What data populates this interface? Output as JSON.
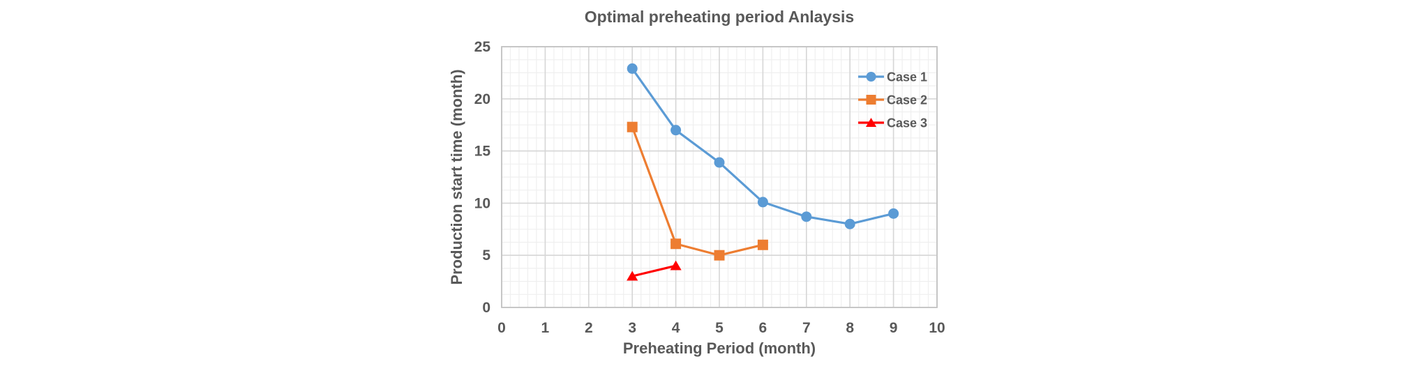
{
  "chart_data": {
    "type": "line",
    "title": "Optimal preheating period Anlaysis",
    "xlabel": "Preheating Period (month)",
    "ylabel": "Production start time (month)",
    "xlim": [
      0,
      10
    ],
    "ylim": [
      0,
      25
    ],
    "x_ticks": [
      0,
      1,
      2,
      3,
      4,
      5,
      6,
      7,
      8,
      9,
      10
    ],
    "y_ticks": [
      0,
      5,
      10,
      15,
      20,
      25
    ],
    "x_major_unit": 1,
    "x_minor_unit": 0.2,
    "y_major_unit": 5,
    "y_minor_unit": 1.25,
    "grid": "major+minor",
    "legend_position": "inside-top-right",
    "series": [
      {
        "name": "Case 1",
        "color": "#5B9BD5",
        "marker": "circle",
        "x": [
          3,
          4,
          5,
          6,
          7,
          8,
          9
        ],
        "y": [
          22.9,
          17.0,
          13.9,
          10.1,
          8.7,
          8.0,
          9.0
        ]
      },
      {
        "name": "Case 2",
        "color": "#ED7D31",
        "marker": "square",
        "x": [
          3,
          4,
          5,
          6
        ],
        "y": [
          17.3,
          6.1,
          5.0,
          6.0
        ]
      },
      {
        "name": "Case 3",
        "color": "#FF0000",
        "marker": "triangle",
        "x": [
          3,
          4
        ],
        "y": [
          3.0,
          4.0
        ]
      }
    ]
  },
  "style": {
    "background": "#ffffff",
    "text_color": "#595959",
    "grid_major_color": "#D6D6D6",
    "grid_minor_color": "#EFEFEF",
    "plot_border_color": "#C3C3C3",
    "series_colors": [
      "#5B9BD5",
      "#ED7D31",
      "#FF0000"
    ]
  }
}
